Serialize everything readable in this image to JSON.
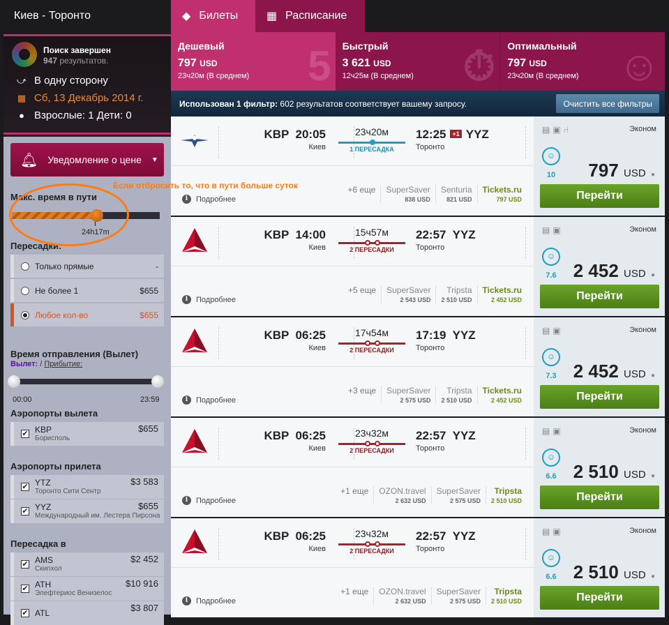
{
  "sidebar": {
    "title": "Киев - Торонто",
    "status": "Поиск завершен",
    "results_count": "947",
    "results_label": "результатов.",
    "trip_type": "В одну сторону",
    "date": "Сб, 13 Декабрь 2014 г.",
    "passengers": "Взрослые: 1 Дети: 0",
    "price_alert": "Уведомление о цене",
    "max_duration": {
      "label": "Макс. время в пути",
      "value": "24h17m"
    },
    "stops": {
      "label": "Пересадки:",
      "options": [
        {
          "label": "Только прямые",
          "price": "-",
          "selected": false
        },
        {
          "label": "Не более 1",
          "price": "$655",
          "selected": false
        },
        {
          "label": "Любое кол-во",
          "price": "$655",
          "selected": true
        }
      ]
    },
    "departure_time": {
      "label": "Время отправления (Вылет)",
      "mode_departure": "Вылет:",
      "sep": "/",
      "mode_arrival": "Прибытие:",
      "min": "00:00",
      "max": "23:59"
    },
    "dep_airports": {
      "label": "Аэропорты вылета",
      "items": [
        {
          "code": "KBP",
          "name": "Борисполь",
          "price": "$655"
        }
      ]
    },
    "arr_airports": {
      "label": "Аэропорты прилета",
      "items": [
        {
          "code": "YTZ",
          "name": "Торонто Сити Сентр",
          "price": "$3 583"
        },
        {
          "code": "YYZ",
          "name": "Международный им. Лестера Пирсона",
          "price": "$655"
        }
      ]
    },
    "transfer": {
      "label": "Пересадка в",
      "items": [
        {
          "code": "AMS",
          "name": "Скипхол",
          "price": "$2 452"
        },
        {
          "code": "ATH",
          "name": "Элефтериос Венизелос",
          "price": "$10 916"
        },
        {
          "code": "ATL",
          "name": "",
          "price": "$3 807"
        }
      ]
    }
  },
  "annotation": "Если отбросить то, что в пути больше суток",
  "tabs": [
    {
      "label": "Билеты",
      "active": true
    },
    {
      "label": "Расписание",
      "active": false
    }
  ],
  "summary": [
    {
      "title": "Дешевый",
      "price": "797",
      "currency": "USD",
      "duration": "23ч20м (В среднем)",
      "bg": "5"
    },
    {
      "title": "Быстрый",
      "price": "3 621",
      "currency": "USD",
      "duration": "12ч25м (В среднем)",
      "bg": "⏱"
    },
    {
      "title": "Оптимальный",
      "price": "797",
      "currency": "USD",
      "duration": "23ч20м (В среднем)",
      "bg": "☺"
    }
  ],
  "filter_bar": {
    "bold": "Использован 1 фильтр:",
    "text": " 602 результатов соответствует вашему запросу.",
    "clear": "Очистить все фильтры"
  },
  "results": [
    {
      "airline": "aeroflot",
      "from": "KBP",
      "dep": "20:05",
      "from_city": "Киев",
      "duration": "23ч20м",
      "stops": "1 ПЕРЕСАДКА",
      "nstops": 1,
      "arr": "12:25",
      "plus": "+1",
      "to": "YYZ",
      "to_city": "Торонто",
      "more": "Подробнее",
      "others": "+6 еще",
      "agents": [
        {
          "n": "SuperSaver",
          "v": "838 USD"
        },
        {
          "n": "Senturia",
          "v": "821 USD"
        },
        {
          "n": "Tickets.ru",
          "v": "797 USD"
        }
      ],
      "class": "Эконом",
      "score": "10",
      "price": "797",
      "currency": "USD",
      "go": "Перейти"
    },
    {
      "airline": "delta",
      "from": "KBP",
      "dep": "14:00",
      "from_city": "Киев",
      "duration": "15ч57м",
      "stops": "2 ПЕРЕСАДКИ",
      "nstops": 2,
      "arr": "22:57",
      "plus": "",
      "to": "YYZ",
      "to_city": "Торонто",
      "more": "Подробнее",
      "others": "+5 еще",
      "agents": [
        {
          "n": "SuperSaver",
          "v": "2 543 USD"
        },
        {
          "n": "Tripsta",
          "v": "2 510 USD"
        },
        {
          "n": "Tickets.ru",
          "v": "2 452 USD"
        }
      ],
      "class": "Эконом",
      "score": "7.6",
      "price": "2 452",
      "currency": "USD",
      "go": "Перейти"
    },
    {
      "airline": "delta",
      "from": "KBP",
      "dep": "06:25",
      "from_city": "Киев",
      "duration": "17ч54м",
      "stops": "2 ПЕРЕСАДКИ",
      "nstops": 2,
      "arr": "17:19",
      "plus": "",
      "to": "YYZ",
      "to_city": "Торонто",
      "more": "Подробнее",
      "others": "+3 еще",
      "agents": [
        {
          "n": "SuperSaver",
          "v": "2 575 USD"
        },
        {
          "n": "Tripsta",
          "v": "2 510 USD"
        },
        {
          "n": "Tickets.ru",
          "v": "2 452 USD"
        }
      ],
      "class": "Эконом",
      "score": "7.3",
      "price": "2 452",
      "currency": "USD",
      "go": "Перейти"
    },
    {
      "airline": "delta",
      "from": "KBP",
      "dep": "06:25",
      "from_city": "Киев",
      "duration": "23ч32м",
      "stops": "2 ПЕРЕСАДКИ",
      "nstops": 2,
      "arr": "22:57",
      "plus": "",
      "to": "YYZ",
      "to_city": "Торонто",
      "more": "Подробнее",
      "others": "+1 еще",
      "agents": [
        {
          "n": "OZON.travel",
          "v": "2 632 USD"
        },
        {
          "n": "SuperSaver",
          "v": "2 575 USD"
        },
        {
          "n": "Tripsta",
          "v": "2 510 USD"
        }
      ],
      "class": "Эконом",
      "score": "6.6",
      "price": "2 510",
      "currency": "USD",
      "go": "Перейти"
    },
    {
      "airline": "delta",
      "from": "KBP",
      "dep": "06:25",
      "from_city": "Киев",
      "duration": "23ч32м",
      "stops": "2 ПЕРЕСАДКИ",
      "nstops": 2,
      "arr": "22:57",
      "plus": "",
      "to": "YYZ",
      "to_city": "Торонто",
      "more": "Подробнее",
      "others": "+1 еще",
      "agents": [
        {
          "n": "OZON.travel",
          "v": "2 632 USD"
        },
        {
          "n": "SuperSaver",
          "v": "2 575 USD"
        },
        {
          "n": "Tripsta",
          "v": "2 510 USD"
        }
      ],
      "class": "Эконом",
      "score": "6.6",
      "price": "2 510",
      "currency": "USD",
      "go": "Перейти"
    }
  ],
  "colors": {
    "pink": "#c0306f",
    "dark_pink": "#8c164b",
    "green": "#5a9120",
    "stops_red": "#a3232a",
    "one_stop": "#1aa0c6",
    "orange": "#ff7a10"
  }
}
